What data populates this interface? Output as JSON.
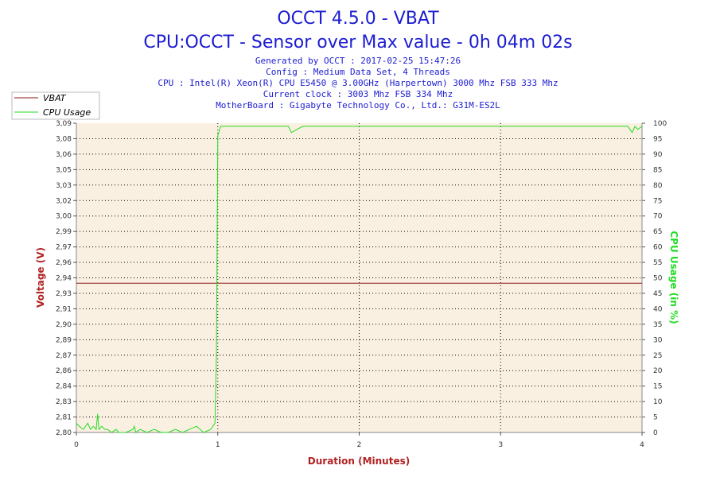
{
  "header": {
    "title": "OCCT 4.5.0 - VBAT",
    "subtitle": "CPU:OCCT - Sensor over Max value - 0h 04m 02s",
    "info_lines": [
      "Generated by OCCT : 2017-02-25 15:47:26",
      "Config : Medium Data Set, 4 Threads",
      "CPU : Intel(R) Xeon(R) CPU E5450 @ 3.00GHz (Harpertown) 3000 Mhz FSB 333 Mhz",
      "Current clock : 3003 Mhz FSB 334 Mhz",
      "MotherBoard : Gigabyte Technology Co., Ltd.: G31M-ES2L"
    ]
  },
  "colors": {
    "vbat": "#8b1a1a",
    "cpu_usage": "#22dd22",
    "plot_bg": "#faf0e1",
    "title": "#1c1cd2",
    "xlabel": "#b22222",
    "ylabel_left": "#b22222",
    "ylabel_right": "#22dd22"
  },
  "legend": {
    "position": "top-left",
    "items": [
      {
        "label": "VBAT",
        "color": "#8b1a1a"
      },
      {
        "label": "CPU Usage",
        "color": "#22dd22"
      }
    ]
  },
  "chart_data": {
    "type": "line",
    "xlabel": "Duration (Minutes)",
    "ylabel": "Voltage (V)",
    "y2label": "CPU Usage (in %)",
    "xlim": [
      0,
      4
    ],
    "ylim": [
      2.8,
      3.09
    ],
    "y2lim": [
      0,
      100
    ],
    "xticks": [
      "0",
      "1",
      "2",
      "3",
      "4"
    ],
    "yticks": [
      "2,80",
      "2,81",
      "2,83",
      "2,84",
      "2,86",
      "2,87",
      "2,89",
      "2,90",
      "2,91",
      "2,93",
      "2,94",
      "2,96",
      "2,97",
      "2,99",
      "3,00",
      "3,02",
      "3,03",
      "3,05",
      "3,06",
      "3,08",
      "3,09"
    ],
    "y2ticks": [
      "0",
      "5",
      "10",
      "15",
      "20",
      "25",
      "30",
      "35",
      "40",
      "45",
      "50",
      "55",
      "60",
      "65",
      "70",
      "75",
      "80",
      "85",
      "90",
      "95",
      "100"
    ],
    "grid": true,
    "series": [
      {
        "name": "VBAT",
        "axis": "left",
        "x": [
          0,
          4
        ],
        "y": [
          2.94,
          2.94
        ]
      },
      {
        "name": "CPU Usage",
        "axis": "right",
        "x": [
          0,
          0.02,
          0.05,
          0.08,
          0.1,
          0.12,
          0.14,
          0.15,
          0.16,
          0.18,
          0.2,
          0.22,
          0.25,
          0.28,
          0.3,
          0.35,
          0.4,
          0.41,
          0.42,
          0.45,
          0.5,
          0.55,
          0.6,
          0.65,
          0.7,
          0.75,
          0.8,
          0.85,
          0.9,
          0.95,
          0.98,
          0.99,
          1.0,
          1.02,
          1.03,
          1.05,
          1.1,
          1.2,
          1.3,
          1.4,
          1.5,
          1.52,
          1.6,
          1.7,
          1.8,
          1.9,
          2.0,
          2.1,
          2.2,
          2.3,
          2.4,
          2.5,
          2.6,
          2.7,
          2.8,
          2.9,
          3.0,
          3.1,
          3.2,
          3.3,
          3.4,
          3.5,
          3.6,
          3.7,
          3.8,
          3.9,
          3.93,
          3.95,
          3.97,
          4.0
        ],
        "y": [
          3,
          2,
          1,
          3,
          1,
          2,
          1,
          6,
          1,
          2,
          1,
          1,
          0,
          1,
          0,
          0,
          1,
          2,
          0,
          1,
          0,
          1,
          0,
          0,
          1,
          0,
          1,
          2,
          0,
          1,
          3,
          25,
          96,
          99,
          99,
          99,
          99,
          99,
          99,
          99,
          99,
          97,
          99,
          99,
          99,
          99,
          99,
          99,
          99,
          99,
          99,
          99,
          99,
          99,
          99,
          99,
          99,
          99,
          99,
          99,
          99,
          99,
          99,
          99,
          99,
          99,
          97,
          99,
          98,
          99
        ]
      }
    ]
  }
}
